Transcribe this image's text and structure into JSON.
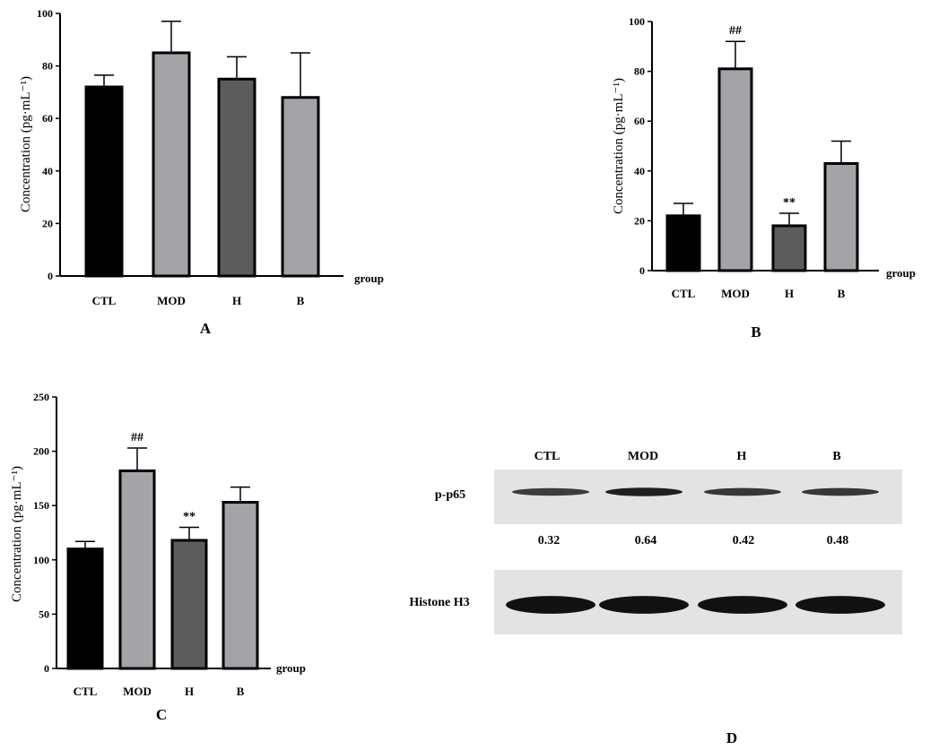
{
  "chart_data": [
    {
      "type": "bar",
      "panel": "A",
      "categories": [
        "CTL",
        "MOD",
        "H",
        "B"
      ],
      "values": [
        72,
        85,
        75,
        68
      ],
      "error_plus": [
        4.5,
        12,
        8.5,
        17
      ],
      "annotations": [
        "",
        "",
        "",
        ""
      ],
      "colors": [
        "#000000",
        "#a3a3a8",
        "#5c5c5c",
        "#a3a3a8"
      ],
      "ylabel": "Concentration (pg·mL⁻¹)",
      "xlabel": "group",
      "ylim": [
        0,
        100
      ],
      "yticks": [
        0,
        20,
        40,
        60,
        80,
        100
      ]
    },
    {
      "type": "bar",
      "panel": "B",
      "categories": [
        "CTL",
        "MOD",
        "H",
        "B"
      ],
      "values": [
        22,
        81,
        18,
        43
      ],
      "error_plus": [
        5,
        11,
        5,
        9
      ],
      "annotations": [
        "",
        "##",
        "**",
        ""
      ],
      "colors": [
        "#000000",
        "#a3a3a8",
        "#5c5c5c",
        "#a3a3a8"
      ],
      "ylabel": "Concentration (pg·mL⁻¹)",
      "xlabel": "group",
      "ylim": [
        0,
        100
      ],
      "yticks": [
        0,
        20,
        40,
        60,
        80,
        100
      ]
    },
    {
      "type": "bar",
      "panel": "C",
      "categories": [
        "CTL",
        "MOD",
        "H",
        "B"
      ],
      "values": [
        110,
        182,
        118,
        153
      ],
      "error_plus": [
        7,
        21,
        12,
        14
      ],
      "annotations": [
        "",
        "##",
        "**",
        ""
      ],
      "colors": [
        "#000000",
        "#a3a3a8",
        "#5c5c5c",
        "#a3a3a8"
      ],
      "ylabel": "Concentration (pg·mL⁻¹)",
      "xlabel": "group",
      "ylim": [
        0,
        250
      ],
      "yticks": [
        0,
        50,
        100,
        150,
        200,
        250
      ]
    }
  ],
  "western_blot": {
    "panel": "D",
    "lanes": [
      "CTL",
      "MOD",
      "H",
      "B"
    ],
    "rows": [
      {
        "label": "p-p65",
        "intensities": [
          0.55,
          0.85,
          0.6,
          0.6
        ]
      },
      {
        "label": "Histone H3",
        "intensities": [
          1.0,
          1.0,
          1.0,
          1.0
        ]
      }
    ],
    "quantification": [
      "0.32",
      "0.64",
      "0.42",
      "0.48"
    ]
  }
}
